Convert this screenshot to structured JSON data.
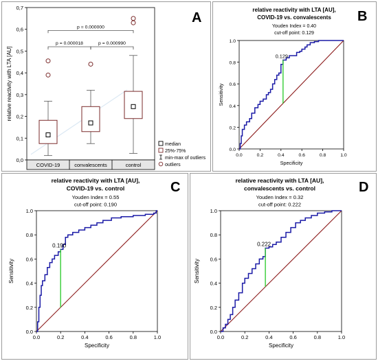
{
  "chart_data": [
    {
      "panel_label": "A",
      "type": "box",
      "ylabel": "relative reactivity with LTA [AU]",
      "categories": [
        "COVID-19",
        "convalescents",
        "control"
      ],
      "ylim": [
        0,
        0.7
      ],
      "yticks": [
        "0,0",
        "0,1",
        "0,2",
        "0,3",
        "0,4",
        "0,5",
        "0,6",
        "0,7"
      ],
      "boxes": [
        {
          "name": "COVID-19",
          "median": 0.115,
          "q1": 0.075,
          "q3": 0.182,
          "min": 0.02,
          "max": 0.27,
          "outliers": [
            0.39,
            0.455
          ]
        },
        {
          "name": "convalescents",
          "median": 0.17,
          "q1": 0.13,
          "q3": 0.245,
          "min": 0.075,
          "max": 0.32,
          "outliers": [
            0.44
          ]
        },
        {
          "name": "control",
          "median": 0.245,
          "q1": 0.19,
          "q3": 0.315,
          "min": 0.03,
          "max": 0.48,
          "outliers": [
            0.63,
            0.65
          ]
        }
      ],
      "comparisons": [
        {
          "from": 0,
          "to": 2,
          "label": "p = 0.000000"
        },
        {
          "from": 0,
          "to": 1,
          "label": "p = 0.000018"
        },
        {
          "from": 1,
          "to": 2,
          "label": "p = 0.000990"
        }
      ],
      "legend": [
        "median",
        "25%-75%",
        "min-max of outliers",
        "outliers"
      ]
    },
    {
      "panel_label": "B",
      "type": "roc",
      "title_lines": [
        "relative reactivity with LTA [AU],",
        "COVID-19 vs. convalescents"
      ],
      "youden": "Youden Index  = 0.40",
      "cutoff": "cut-off point: 0.129",
      "marker_label": "0.129",
      "xlabel": "Specificity",
      "ylabel": "Sensitivity",
      "ticks": [
        "0.0",
        "0.2",
        "0.4",
        "0.6",
        "0.8",
        "1.0"
      ],
      "cut_x": 0.42,
      "cut_y": 0.82,
      "curve": [
        [
          0,
          0
        ],
        [
          0.01,
          0.05
        ],
        [
          0.02,
          0.12
        ],
        [
          0.03,
          0.18
        ],
        [
          0.05,
          0.22
        ],
        [
          0.07,
          0.25
        ],
        [
          0.1,
          0.28
        ],
        [
          0.12,
          0.33
        ],
        [
          0.15,
          0.38
        ],
        [
          0.18,
          0.41
        ],
        [
          0.2,
          0.44
        ],
        [
          0.23,
          0.46
        ],
        [
          0.26,
          0.5
        ],
        [
          0.28,
          0.52
        ],
        [
          0.3,
          0.55
        ],
        [
          0.32,
          0.6
        ],
        [
          0.34,
          0.64
        ],
        [
          0.36,
          0.68
        ],
        [
          0.38,
          0.7
        ],
        [
          0.4,
          0.78
        ],
        [
          0.42,
          0.82
        ],
        [
          0.45,
          0.84
        ],
        [
          0.48,
          0.86
        ],
        [
          0.52,
          0.86
        ],
        [
          0.55,
          0.89
        ],
        [
          0.58,
          0.9
        ],
        [
          0.6,
          0.92
        ],
        [
          0.63,
          0.94
        ],
        [
          0.65,
          0.96
        ],
        [
          0.68,
          0.98
        ],
        [
          0.72,
          0.99
        ],
        [
          0.76,
          1.0
        ],
        [
          0.85,
          1.0
        ],
        [
          1.0,
          1.0
        ]
      ]
    },
    {
      "panel_label": "C",
      "type": "roc",
      "title_lines": [
        "relative reactivity with LTA [AU],",
        "COVID-19 vs. control"
      ],
      "youden": "Youden Index  = 0.55",
      "cutoff": "cut-off point: 0.190",
      "marker_label": "0.190",
      "xlabel": "Specificity",
      "ylabel": "Sensitivity",
      "ticks": [
        "0.0",
        "0.2",
        "0.4",
        "0.6",
        "0.8",
        "1.0"
      ],
      "cut_x": 0.2,
      "cut_y": 0.68,
      "curve": [
        [
          0,
          0
        ],
        [
          0.01,
          0.08
        ],
        [
          0.02,
          0.2
        ],
        [
          0.03,
          0.3
        ],
        [
          0.04,
          0.38
        ],
        [
          0.05,
          0.42
        ],
        [
          0.07,
          0.47
        ],
        [
          0.09,
          0.53
        ],
        [
          0.11,
          0.57
        ],
        [
          0.13,
          0.6
        ],
        [
          0.15,
          0.63
        ],
        [
          0.18,
          0.66
        ],
        [
          0.2,
          0.68
        ],
        [
          0.22,
          0.72
        ],
        [
          0.24,
          0.78
        ],
        [
          0.26,
          0.8
        ],
        [
          0.3,
          0.82
        ],
        [
          0.35,
          0.84
        ],
        [
          0.4,
          0.86
        ],
        [
          0.45,
          0.88
        ],
        [
          0.5,
          0.9
        ],
        [
          0.55,
          0.92
        ],
        [
          0.62,
          0.94
        ],
        [
          0.7,
          0.95
        ],
        [
          0.8,
          0.96
        ],
        [
          0.9,
          0.97
        ],
        [
          0.97,
          0.98
        ],
        [
          0.99,
          1.0
        ],
        [
          1.0,
          1.0
        ]
      ]
    },
    {
      "panel_label": "D",
      "type": "roc",
      "title_lines": [
        "relative reactivity with LTA [AU],",
        "convalescents vs. control"
      ],
      "youden": "Youden Index  = 0.32",
      "cutoff": "cut-off point: 0.222",
      "marker_label": "0.222",
      "xlabel": "Specificity",
      "ylabel": "Sensitivity",
      "ticks": [
        "0.0",
        "0.2",
        "0.4",
        "0.6",
        "0.8",
        "1.0"
      ],
      "cut_x": 0.37,
      "cut_y": 0.69,
      "curve": [
        [
          0,
          0
        ],
        [
          0.02,
          0.03
        ],
        [
          0.04,
          0.06
        ],
        [
          0.06,
          0.1
        ],
        [
          0.08,
          0.14
        ],
        [
          0.1,
          0.2
        ],
        [
          0.12,
          0.26
        ],
        [
          0.15,
          0.32
        ],
        [
          0.18,
          0.4
        ],
        [
          0.2,
          0.44
        ],
        [
          0.23,
          0.48
        ],
        [
          0.26,
          0.52
        ],
        [
          0.29,
          0.56
        ],
        [
          0.32,
          0.6
        ],
        [
          0.35,
          0.62
        ],
        [
          0.37,
          0.69
        ],
        [
          0.4,
          0.7
        ],
        [
          0.43,
          0.72
        ],
        [
          0.46,
          0.74
        ],
        [
          0.5,
          0.78
        ],
        [
          0.54,
          0.82
        ],
        [
          0.58,
          0.86
        ],
        [
          0.62,
          0.9
        ],
        [
          0.66,
          0.92
        ],
        [
          0.7,
          0.94
        ],
        [
          0.75,
          0.96
        ],
        [
          0.8,
          0.98
        ],
        [
          0.86,
          0.99
        ],
        [
          0.92,
          1.0
        ],
        [
          1.0,
          1.0
        ]
      ]
    }
  ]
}
